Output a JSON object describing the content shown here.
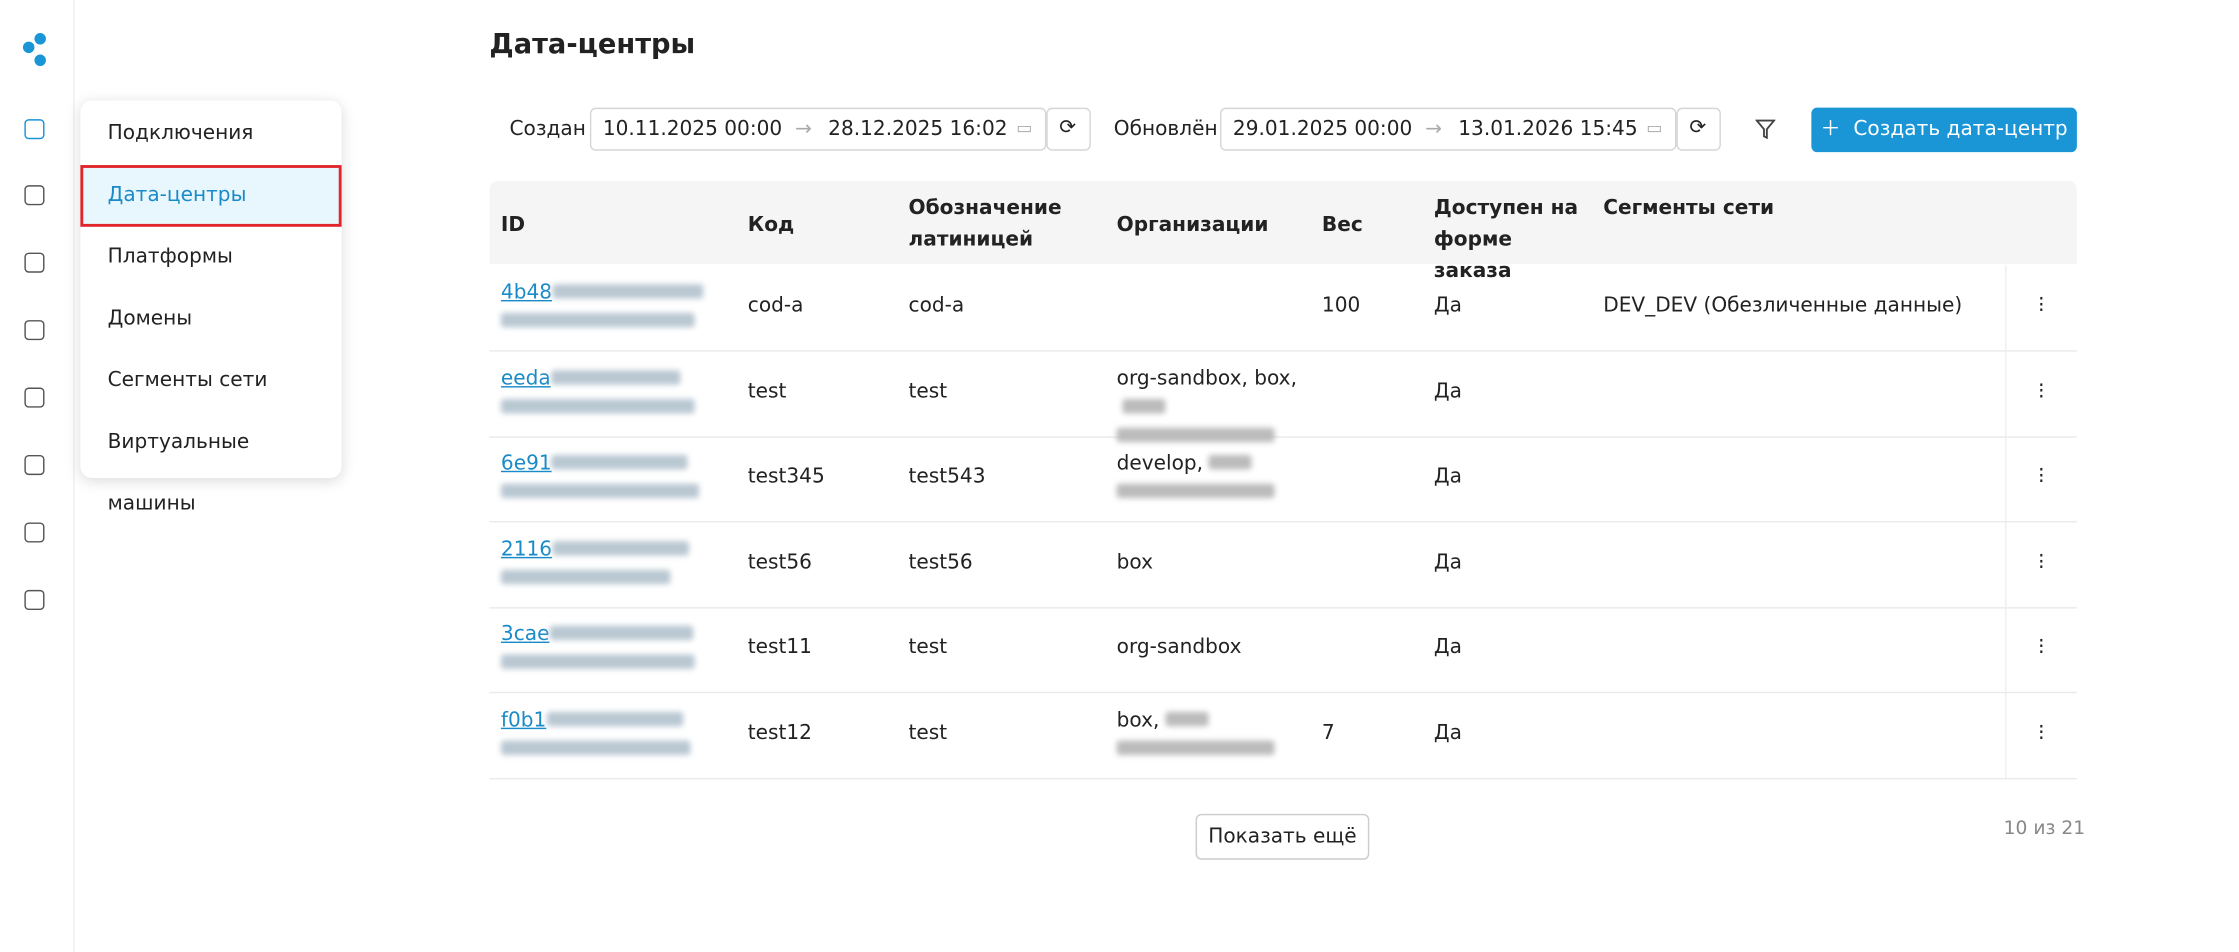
{
  "sidebar_menu": {
    "items": [
      "Подключения",
      "Дата-центры",
      "Платформы",
      "Домены",
      "Сегменты сети",
      "Виртуальные машины"
    ]
  },
  "page": {
    "title": "Дата-центры"
  },
  "filters": {
    "created_label": "Создан",
    "created_from": "10.11.2025 00:00",
    "created_to": "28.12.2025 16:02",
    "updated_label": "Обновлён",
    "updated_from": "29.01.2025 00:00",
    "updated_to": "13.01.2026 15:45"
  },
  "create_button": "Создать дата-центр",
  "table": {
    "headers": [
      "ID",
      "Код",
      "Обозначение латиницей",
      "Организации",
      "Вес",
      "Доступен на форме заказа",
      "Сегменты сети"
    ],
    "rows": [
      [
        "4b48",
        "cod-a",
        "cod-a",
        null,
        100,
        "Да",
        "DEV_DEV (Обезличенные данные)"
      ],
      [
        "eeda",
        "test",
        "test",
        "org-sandbox, box,",
        null,
        "Да",
        null
      ],
      [
        "6e91",
        "test345",
        "test543",
        "develop,",
        null,
        "Да",
        null
      ],
      [
        "2116",
        "test56",
        "test56",
        "box",
        null,
        "Да",
        null
      ],
      [
        "3cae",
        "test11",
        "test",
        "org-sandbox",
        null,
        "Да",
        null
      ],
      [
        "f0b1",
        "test12",
        "test",
        "box,",
        7,
        "Да",
        null
      ]
    ]
  },
  "show_more": "Показать ещё",
  "pagination": "10 из 21"
}
